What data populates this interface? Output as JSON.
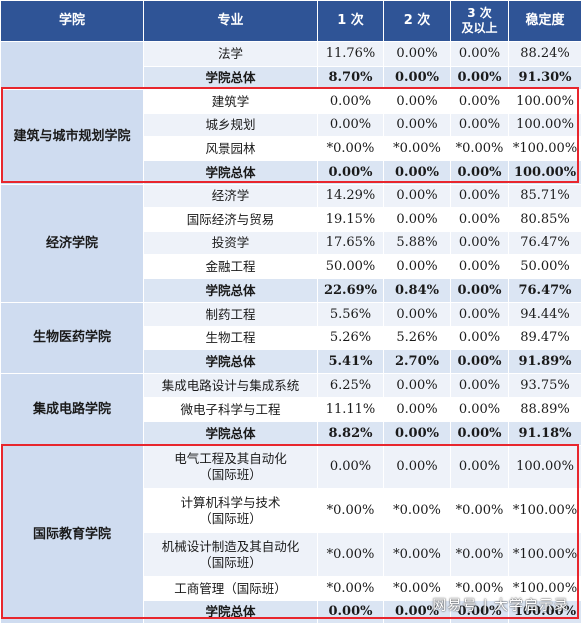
{
  "header": {
    "college": "学院",
    "major": "专业",
    "c1": "1 次",
    "c2": "2 次",
    "c3_line1": "3 次",
    "c3_line2": "及以上",
    "stability": "稳定度"
  },
  "groups": [
    {
      "college": "",
      "rows": [
        {
          "major": "法学",
          "v": [
            "11.76%",
            "0.00%",
            "0.00%",
            "88.24%"
          ]
        },
        {
          "major": "学院总体",
          "total": true,
          "v": [
            "8.70%",
            "0.00%",
            "0.00%",
            "91.30%"
          ]
        }
      ]
    },
    {
      "college": "建筑与城市规划学院",
      "rows": [
        {
          "major": "建筑学",
          "v": [
            "0.00%",
            "0.00%",
            "0.00%",
            "100.00%"
          ]
        },
        {
          "major": "城乡规划",
          "v": [
            "0.00%",
            "0.00%",
            "0.00%",
            "100.00%"
          ]
        },
        {
          "major": "风景园林",
          "v": [
            "*0.00%",
            "*0.00%",
            "*0.00%",
            "*100.00%"
          ]
        },
        {
          "major": "学院总体",
          "total": true,
          "v": [
            "0.00%",
            "0.00%",
            "0.00%",
            "100.00%"
          ]
        }
      ]
    },
    {
      "college": "经济学院",
      "rows": [
        {
          "major": "经济学",
          "v": [
            "14.29%",
            "0.00%",
            "0.00%",
            "85.71%"
          ]
        },
        {
          "major": "国际经济与贸易",
          "v": [
            "19.15%",
            "0.00%",
            "0.00%",
            "80.85%"
          ]
        },
        {
          "major": "投资学",
          "v": [
            "17.65%",
            "5.88%",
            "0.00%",
            "76.47%"
          ]
        },
        {
          "major": "金融工程",
          "v": [
            "50.00%",
            "0.00%",
            "0.00%",
            "50.00%"
          ]
        },
        {
          "major": "学院总体",
          "total": true,
          "v": [
            "22.69%",
            "0.84%",
            "0.00%",
            "76.47%"
          ]
        }
      ]
    },
    {
      "college": "生物医药学院",
      "rows": [
        {
          "major": "制药工程",
          "v": [
            "5.56%",
            "0.00%",
            "0.00%",
            "94.44%"
          ]
        },
        {
          "major": "生物工程",
          "v": [
            "5.26%",
            "5.26%",
            "0.00%",
            "89.47%"
          ]
        },
        {
          "major": "学院总体",
          "total": true,
          "v": [
            "5.41%",
            "2.70%",
            "0.00%",
            "91.89%"
          ]
        }
      ]
    },
    {
      "college": "集成电路学院",
      "rows": [
        {
          "major": "集成电路设计与集成系统",
          "v": [
            "6.25%",
            "0.00%",
            "0.00%",
            "93.75%"
          ]
        },
        {
          "major": "微电子科学与工程",
          "v": [
            "11.11%",
            "0.00%",
            "0.00%",
            "88.89%"
          ]
        },
        {
          "major": "学院总体",
          "total": true,
          "v": [
            "8.82%",
            "0.00%",
            "0.00%",
            "91.18%"
          ]
        }
      ]
    },
    {
      "college": "国际教育学院",
      "rows": [
        {
          "major": "电气工程及其自动化",
          "major2": "（国际班）",
          "v": [
            "0.00%",
            "0.00%",
            "0.00%",
            "100.00%"
          ]
        },
        {
          "major": "计算机科学与技术",
          "major2": "（国际班）",
          "v": [
            "*0.00%",
            "*0.00%",
            "*0.00%",
            "*100.00%"
          ]
        },
        {
          "major": "机械设计制造及其自动化",
          "major2": "（国际班）",
          "v": [
            "*0.00%",
            "*0.00%",
            "*0.00%",
            "*100.00%"
          ]
        },
        {
          "major": "工商管理（国际班）",
          "v": [
            "*0.00%",
            "*0.00%",
            "*0.00%",
            "*100.00%"
          ]
        },
        {
          "major": "学院总体",
          "total": true,
          "v": [
            "0.00%",
            "0.00%",
            "0.00%",
            "100.00%"
          ]
        }
      ]
    }
  ],
  "watermark": "网易号 | 大学启示录",
  "colors": {
    "header": "#2f5496",
    "college_cell": "#cfdcf0",
    "row_odd": "#eef2f9",
    "row_total": "#dbe5f3",
    "highlight_box": "#e8262d"
  }
}
